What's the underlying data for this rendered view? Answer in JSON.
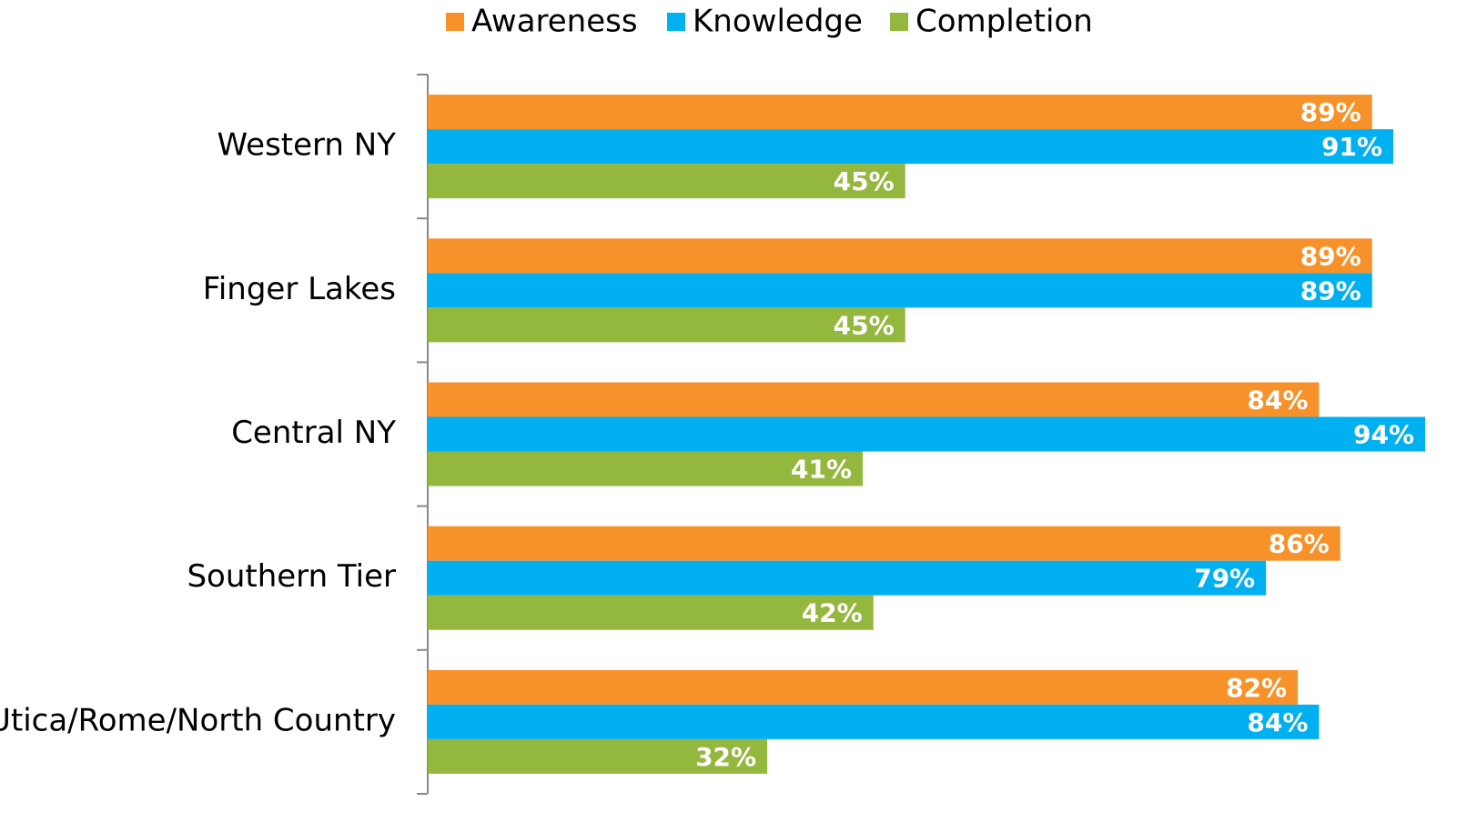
{
  "chart_data": {
    "type": "bar",
    "orientation": "horizontal",
    "categories": [
      "Western NY",
      "Finger Lakes",
      "Central NY",
      "Southern Tier",
      "Utica/Rome/North Country"
    ],
    "series": [
      {
        "name": "Awareness",
        "color": "#f7922a",
        "values": [
          89,
          89,
          84,
          86,
          82
        ],
        "value_labels": [
          "89%",
          "89%",
          "84%",
          "86%",
          "82%"
        ]
      },
      {
        "name": "Knowledge",
        "color": "#00b0f0",
        "values": [
          91,
          89,
          94,
          79,
          84
        ],
        "value_labels": [
          "91%",
          "89%",
          "94%",
          "79%",
          "84%"
        ]
      },
      {
        "name": "Completion",
        "color": "#94b73e",
        "values": [
          45,
          45,
          41,
          42,
          32
        ],
        "value_labels": [
          "45%",
          "45%",
          "41%",
          "42%",
          "32%"
        ]
      }
    ],
    "xlim": [
      0,
      100
    ],
    "legend": "top"
  }
}
